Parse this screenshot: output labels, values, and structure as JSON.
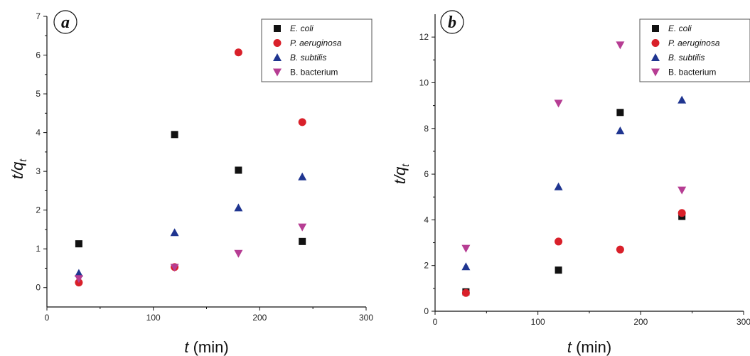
{
  "chart_data": [
    {
      "type": "scatter",
      "panel_label": "a",
      "xlabel_var": "t",
      "xlabel_unit": " (min)",
      "ylabel_var": "t/q",
      "ylabel_sub": "t",
      "xlim": [
        0,
        300
      ],
      "ylim": [
        -0.5,
        7
      ],
      "xticks": [
        0,
        100,
        200,
        300
      ],
      "yticks": [
        0,
        1,
        2,
        3,
        4,
        5,
        6,
        7
      ],
      "legend_position": "top-right",
      "grid": false,
      "series": [
        {
          "name": "E. coli",
          "italic": true,
          "marker": "square",
          "color": "#111111",
          "points": [
            {
              "x": 30,
              "y": 1.13
            },
            {
              "x": 120,
              "y": 3.95
            },
            {
              "x": 180,
              "y": 3.03
            },
            {
              "x": 240,
              "y": 1.19
            }
          ]
        },
        {
          "name": "P. aeruginosa",
          "italic": true,
          "marker": "circle",
          "color": "#d9202a",
          "points": [
            {
              "x": 30,
              "y": 0.13
            },
            {
              "x": 120,
              "y": 0.53
            },
            {
              "x": 180,
              "y": 6.07
            },
            {
              "x": 240,
              "y": 4.27
            }
          ]
        },
        {
          "name": "B. subtilis",
          "italic": true,
          "marker": "triangle-up",
          "color": "#1f3590",
          "points": [
            {
              "x": 30,
              "y": 0.37
            },
            {
              "x": 120,
              "y": 1.42
            },
            {
              "x": 180,
              "y": 2.06
            },
            {
              "x": 240,
              "y": 2.86
            }
          ]
        },
        {
          "name": "B. bacterium",
          "italic": false,
          "marker": "triangle-down",
          "color": "#b63d93",
          "points": [
            {
              "x": 30,
              "y": 0.23
            },
            {
              "x": 120,
              "y": 0.52
            },
            {
              "x": 180,
              "y": 0.88
            },
            {
              "x": 240,
              "y": 1.56
            }
          ]
        }
      ]
    },
    {
      "type": "scatter",
      "panel_label": "b",
      "xlabel_var": "t",
      "xlabel_unit": " (min)",
      "ylabel_var": "t/q",
      "ylabel_sub": "t",
      "xlim": [
        0,
        300
      ],
      "ylim": [
        0,
        13
      ],
      "xticks": [
        0,
        100,
        200,
        300
      ],
      "yticks": [
        0,
        2,
        4,
        6,
        8,
        10,
        12
      ],
      "legend_position": "top-right",
      "grid": false,
      "series": [
        {
          "name": "E. coli",
          "italic": true,
          "marker": "square",
          "color": "#111111",
          "points": [
            {
              "x": 30,
              "y": 0.85
            },
            {
              "x": 120,
              "y": 1.8
            },
            {
              "x": 180,
              "y": 8.7
            },
            {
              "x": 240,
              "y": 4.15
            }
          ]
        },
        {
          "name": "P. aeruginosa",
          "italic": true,
          "marker": "circle",
          "color": "#d9202a",
          "points": [
            {
              "x": 30,
              "y": 0.8
            },
            {
              "x": 120,
              "y": 3.05
            },
            {
              "x": 180,
              "y": 2.7
            },
            {
              "x": 240,
              "y": 4.3
            }
          ]
        },
        {
          "name": "B. subtilis",
          "italic": true,
          "marker": "triangle-up",
          "color": "#1f3590",
          "points": [
            {
              "x": 30,
              "y": 1.95
            },
            {
              "x": 120,
              "y": 5.45
            },
            {
              "x": 180,
              "y": 7.9
            },
            {
              "x": 240,
              "y": 9.25
            }
          ]
        },
        {
          "name": "B. bacterium",
          "italic": false,
          "marker": "triangle-down",
          "color": "#b63d93",
          "points": [
            {
              "x": 30,
              "y": 2.75
            },
            {
              "x": 120,
              "y": 9.1
            },
            {
              "x": 180,
              "y": 11.65
            },
            {
              "x": 240,
              "y": 5.3
            }
          ]
        }
      ]
    }
  ]
}
